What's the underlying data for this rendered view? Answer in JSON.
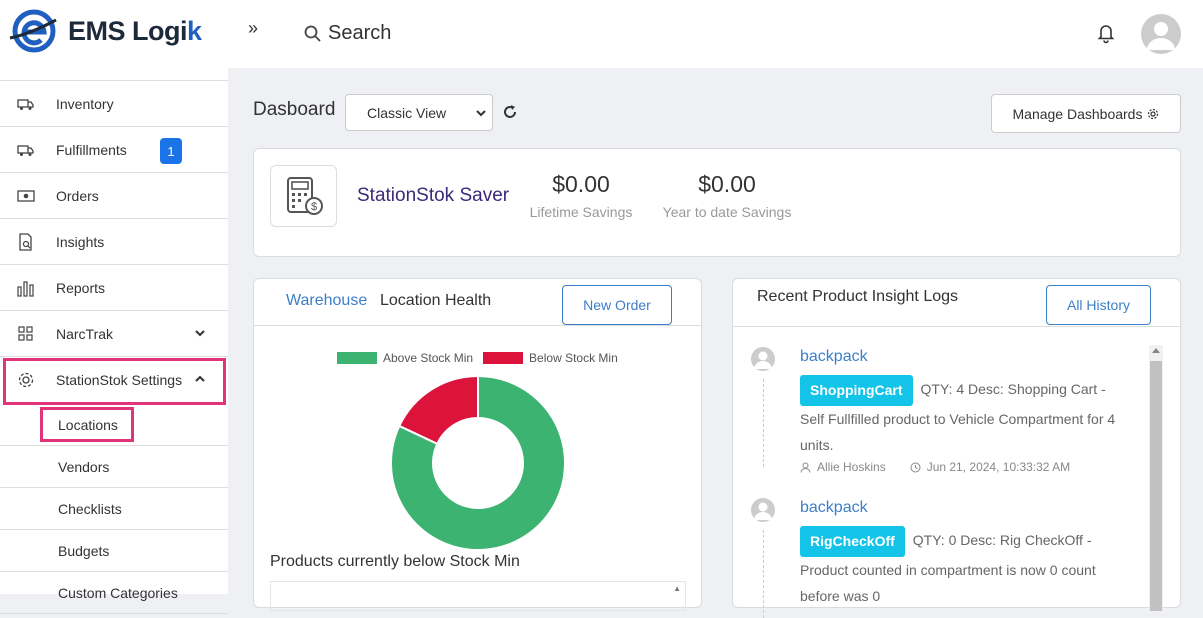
{
  "header": {
    "logo_text_main": "EMS Logi",
    "logo_text_accent": "k",
    "collapse_icon": "»",
    "search_label": "Search"
  },
  "sidebar": {
    "items": [
      {
        "label": "Inventory",
        "icon": "truck-icon"
      },
      {
        "label": "Fulfillments",
        "icon": "truck-icon",
        "badge": "1"
      },
      {
        "label": "Orders",
        "icon": "money-icon"
      },
      {
        "label": "Insights",
        "icon": "document-search-icon"
      },
      {
        "label": "Reports",
        "icon": "bar-chart-icon"
      },
      {
        "label": "NarcTrak",
        "icon": "grid-icon"
      },
      {
        "label": "StationStok Settings",
        "icon": "gear-icon"
      }
    ],
    "sub_items": [
      {
        "label": "Locations"
      },
      {
        "label": "Vendors"
      },
      {
        "label": "Checklists"
      },
      {
        "label": "Budgets"
      },
      {
        "label": "Custom Categories"
      }
    ]
  },
  "main": {
    "title": "Dasboard",
    "view_select": "Classic View",
    "manage_label": "Manage Dashboards",
    "saver": {
      "title": "StationStok Saver",
      "lifetime_value": "$0.00",
      "lifetime_caption": "Lifetime Savings",
      "ytd_value": "$0.00",
      "ytd_caption": "Year to date Savings"
    },
    "location": {
      "tab_warehouse": "Warehouse",
      "tab_health": "Location Health",
      "new_order": "New Order",
      "below_title": "Products currently below Stock Min"
    },
    "logs": {
      "title": "Recent Product Insight Logs",
      "all_history": "All History",
      "entries": [
        {
          "product": "backpack",
          "tag": "ShoppingCart",
          "desc": "QTY: 4  Desc: Shopping Cart - Self Fullfilled product to Vehicle Compartment for 4 units.",
          "user": "Allie Hoskins",
          "time": "Jun 21, 2024, 10:33:32 AM"
        },
        {
          "product": "backpack",
          "tag": "RigCheckOff",
          "desc": "QTY: 0  Desc: Rig CheckOff - Product counted in compartment is now 0 count before was 0"
        }
      ]
    }
  },
  "chart_data": {
    "type": "pie",
    "categories": [
      "Above Stock Min",
      "Below Stock Min"
    ],
    "values": [
      82,
      18
    ],
    "colors": [
      "#3cb371",
      "#dc143c"
    ],
    "legend": "top"
  }
}
